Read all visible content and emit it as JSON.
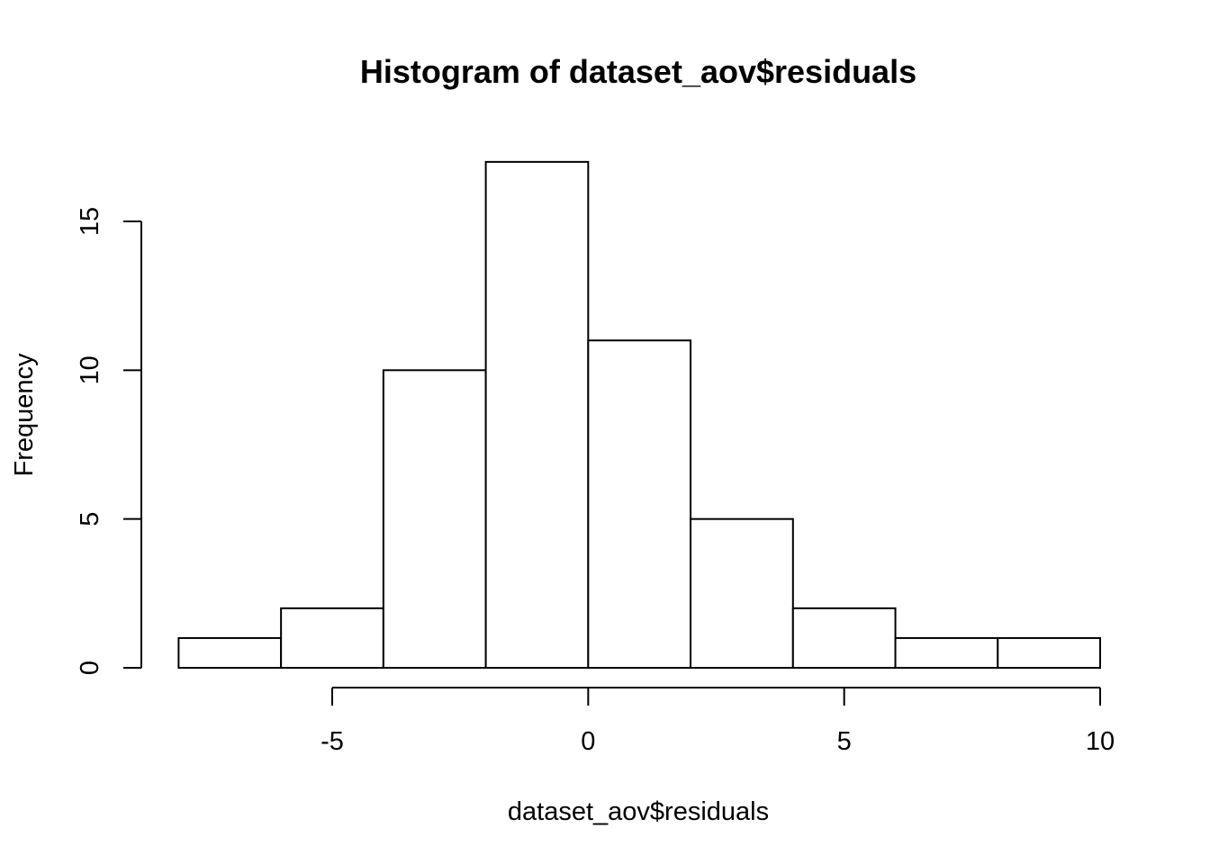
{
  "chart_data": {
    "type": "bar",
    "title": "Histogram of dataset_aov$residuals",
    "xlabel": "dataset_aov$residuals",
    "ylabel": "Frequency",
    "bins": [
      {
        "x0": -8,
        "x1": -6,
        "count": 1
      },
      {
        "x0": -6,
        "x1": -4,
        "count": 2
      },
      {
        "x0": -4,
        "x1": -2,
        "count": 10
      },
      {
        "x0": -2,
        "x1": 0,
        "count": 17
      },
      {
        "x0": 0,
        "x1": 2,
        "count": 11
      },
      {
        "x0": 2,
        "x1": 4,
        "count": 5
      },
      {
        "x0": 4,
        "x1": 6,
        "count": 2
      },
      {
        "x0": 6,
        "x1": 8,
        "count": 1
      },
      {
        "x0": 8,
        "x1": 10,
        "count": 1
      }
    ],
    "xlim": [
      -8,
      10
    ],
    "ylim": [
      0,
      17
    ],
    "xticks": [
      -5,
      0,
      5,
      10
    ],
    "yticks": [
      0,
      5,
      10,
      15
    ],
    "grid": false,
    "bar_fill": "#ffffff",
    "bar_stroke": "#000000"
  }
}
